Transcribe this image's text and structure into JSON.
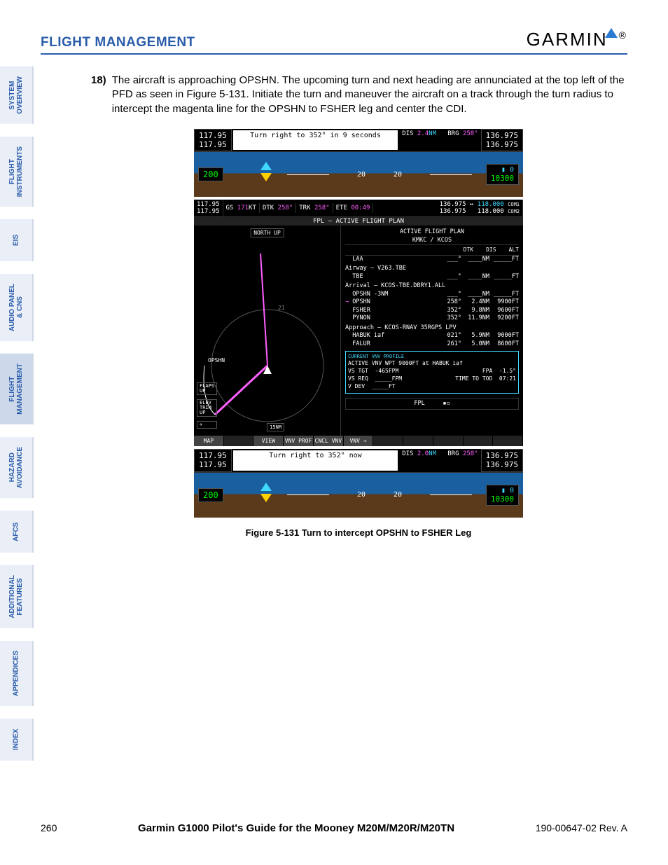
{
  "header": {
    "section_title": "FLIGHT MANAGEMENT",
    "brand": "GARMIN",
    "brand_dot_color": "#2a7bd1"
  },
  "sidebar": {
    "tabs": [
      {
        "label": "SYSTEM\nOVERVIEW",
        "active": false
      },
      {
        "label": "FLIGHT\nINSTRUMENTS",
        "active": false
      },
      {
        "label": "EIS",
        "active": false
      },
      {
        "label": "AUDIO PANEL\n& CNS",
        "active": false
      },
      {
        "label": "FLIGHT\nMANAGEMENT",
        "active": true
      },
      {
        "label": "HAZARD\nAVOIDANCE",
        "active": false
      },
      {
        "label": "AFCS",
        "active": false
      },
      {
        "label": "ADDITIONAL\nFEATURES",
        "active": false
      },
      {
        "label": "APPENDICES",
        "active": false
      },
      {
        "label": "INDEX",
        "active": false
      }
    ]
  },
  "step": {
    "num": "18)",
    "text": "The aircraft is approaching OPSHN. The upcoming turn and next heading are annunciated at the top left of the PFD as seen in Figure 5-131.  Initiate the turn and maneuver the aircraft on a track through the turn radius to intercept the magenta line for the OPSHN to FSHER leg and center the CDI."
  },
  "pfd1": {
    "nav1": "117.95",
    "nav2": "117.95",
    "turn_msg": "Turn right to 352° in 9 seconds",
    "dis_label": "DIS",
    "dis_val": "2.4",
    "dis_unit": "NM",
    "brg_label": "BRG",
    "brg_val": "258°",
    "com1": "136.975",
    "com2": "136.975",
    "ias": "200",
    "alt_sel": "0",
    "alt": "10300",
    "pitch_l": "20",
    "pitch_r": "20"
  },
  "mfd": {
    "nav1": "117.95",
    "nav2": "117.95",
    "gs_label": "GS",
    "gs_val": "171",
    "gs_unit": "KT",
    "dtk_label": "DTK",
    "dtk_val": "258°",
    "trk_label": "TRK",
    "trk_val": "258°",
    "ete_label": "ETE",
    "ete_val": "00:49",
    "com1a": "136.975",
    "com1b": "118.000",
    "com1l": "COM1",
    "com2a": "136.975",
    "com2b": "118.000",
    "com2l": "COM2",
    "title": "FPL – ACTIVE FLIGHT PLAN",
    "northup": "NORTH UP",
    "map_label": "OPSHN",
    "range": "15NM",
    "flaps": "FLAPS\nUP",
    "trim": "ELEV\nTRIM\nUP",
    "fpl": {
      "hdr": "ACTIVE FLIGHT PLAN",
      "route": "KMKC / KCOS",
      "cols": [
        "DTK",
        "DIS",
        "ALT"
      ],
      "rows": [
        {
          "wpt": "LAA",
          "dtk": "___°",
          "dis": "____NM",
          "alt": "_____FT"
        },
        {
          "wpt": "Airway – V263.TBE",
          "section": true
        },
        {
          "wpt": "TBE",
          "dtk": "___°",
          "dis": "____NM",
          "alt": "_____FT"
        },
        {
          "wpt": "Arrival – KCOS-TBE.DBRY1.ALL",
          "section": true
        },
        {
          "wpt": "OPSHN -3NM",
          "dtk": "___°",
          "dis": "____NM",
          "alt": "_____FT"
        },
        {
          "wpt": "OPSHN",
          "dtk": "258°",
          "dis": "2.4NM",
          "alt": "9900FT",
          "current": true
        },
        {
          "wpt": "FSHER",
          "dtk": "352°",
          "dis": "9.8NM",
          "alt": "9600FT"
        },
        {
          "wpt": "PYNON",
          "dtk": "352°",
          "dis": "11.9NM",
          "alt": "9200FT"
        },
        {
          "wpt": "Approach – KCOS-RNAV 35RGPS LPV",
          "section": true
        },
        {
          "wpt": "HABUK iaf",
          "dtk": "021°",
          "dis": "5.9NM",
          "alt": "9000FT"
        },
        {
          "wpt": "FALUR",
          "dtk": "261°",
          "dis": "5.0NM",
          "alt": "8600FT"
        }
      ],
      "vnv": {
        "hdr": "CURRENT VNV PROFILE",
        "act": "ACTIVE VNV WPT   9000FT   at HABUK iaf",
        "r1l": "VS TGT",
        "r1v": "-465FPM",
        "r1l2": "FPA",
        "r1v2": "-1.5°",
        "r2l": "VS REQ",
        "r2v": "_____FPM",
        "r2l2": "TIME TO TOD",
        "r2v2": "07:21",
        "r3l": "V DEV",
        "r3v": "_____FT"
      },
      "grp_label": "FPL"
    },
    "softkeys": [
      "MAP",
      "",
      "VIEW",
      "VNV PROF",
      "CNCL VNV",
      "VNV →",
      "",
      "",
      "",
      "",
      ""
    ]
  },
  "pfd2": {
    "nav1": "117.95",
    "nav2": "117.95",
    "turn_msg": "Turn right to 352° now",
    "dis_label": "DIS",
    "dis_val": "2.0",
    "dis_unit": "NM",
    "brg_label": "BRG",
    "brg_val": "258°",
    "com1": "136.975",
    "com2": "136.975",
    "ias": "200",
    "alt_sel": "0",
    "alt": "10300",
    "pitch_l": "20",
    "pitch_r": "20"
  },
  "caption": "Figure 5-131  Turn to intercept OPSHN to FSHER Leg",
  "footer": {
    "page": "260",
    "center": "Garmin G1000 Pilot's Guide for the Mooney M20M/M20R/M20TN",
    "rev": "190-00647-02  Rev. A"
  }
}
